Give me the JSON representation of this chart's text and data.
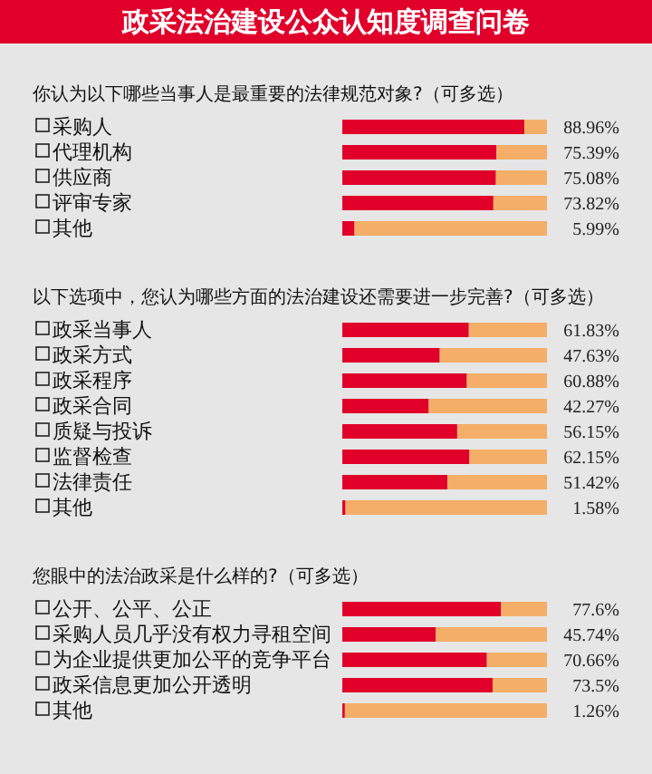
{
  "chart_data": [
    {
      "type": "bar",
      "orientation": "horizontal",
      "stacked": true,
      "title": "政采法治建设公众认知度调查问卷",
      "subtitle": "你认为以下哪些当事人是最重要的法律规范对象?（可多选）",
      "categories": [
        "采购人",
        "代理机构",
        "供应商",
        "评审专家",
        "其他"
      ],
      "xlim": [
        0,
        100
      ],
      "series": [
        {
          "color": "#e0002a",
          "values": [
            88.96,
            75.39,
            75.08,
            73.82,
            5.99
          ],
          "value_labels": [
            "88.96%",
            "75.39%",
            "75.08%",
            "73.82%",
            "5.99%"
          ]
        },
        {
          "color": "#f4ae68",
          "values": [
            11.04,
            24.61,
            24.92,
            26.18,
            94.01
          ]
        }
      ]
    },
    {
      "type": "bar",
      "orientation": "horizontal",
      "stacked": true,
      "subtitle": "以下选项中，您认为哪些方面的法治建设还需要进一步完善?（可多选）",
      "categories": [
        "政采当事人",
        "政采方式",
        "政采程序",
        "政采合同",
        "质疑与投诉",
        "监督检查",
        "法律责任",
        "其他"
      ],
      "xlim": [
        0,
        100
      ],
      "series": [
        {
          "color": "#e0002a",
          "values": [
            61.83,
            47.63,
            60.88,
            42.27,
            56.15,
            62.15,
            51.42,
            1.58
          ],
          "value_labels": [
            "61.83%",
            "47.63%",
            "60.88%",
            "42.27%",
            "56.15%",
            "62.15%",
            "51.42%",
            "1.58%"
          ]
        },
        {
          "color": "#f4ae68",
          "values": [
            38.17,
            52.37,
            39.12,
            57.73,
            43.85,
            37.85,
            48.58,
            98.42
          ]
        }
      ]
    },
    {
      "type": "bar",
      "orientation": "horizontal",
      "stacked": true,
      "subtitle": "您眼中的法治政采是什么样的?（可多选）",
      "categories": [
        "公开、公平、公正",
        "采购人员几乎没有权力寻租空间",
        "为企业提供更加公平的竞争平台",
        "政采信息更加公开透明",
        "其他"
      ],
      "xlim": [
        0,
        100
      ],
      "series": [
        {
          "color": "#e0002a",
          "values": [
            77.6,
            45.74,
            70.66,
            73.5,
            1.26
          ],
          "value_labels": [
            "77.6%",
            "45.74%",
            "70.66%",
            "73.5%",
            "1.26%"
          ]
        },
        {
          "color": "#f4ae68",
          "values": [
            22.4,
            54.26,
            29.34,
            26.5,
            98.74
          ]
        }
      ]
    }
  ]
}
